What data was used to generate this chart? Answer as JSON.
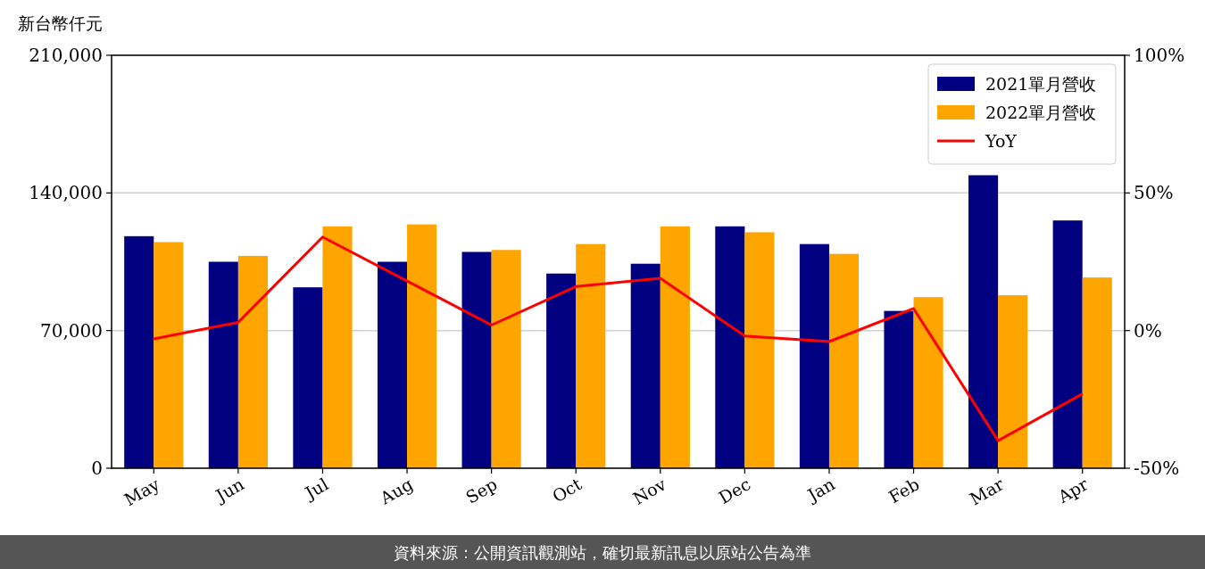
{
  "chart_data": {
    "type": "bar",
    "ylabel": "新台幣仟元",
    "categories": [
      "May",
      "Jun",
      "Jul",
      "Aug",
      "Sep",
      "Oct",
      "Nov",
      "Dec",
      "Jan",
      "Feb",
      "Mar",
      "Apr"
    ],
    "series": [
      {
        "name": "2021單月營收",
        "color": "#000080",
        "values": [
          118000,
          105000,
          92000,
          105000,
          110000,
          99000,
          104000,
          123000,
          114000,
          80000,
          149000,
          126000
        ]
      },
      {
        "name": "2022單月營收",
        "color": "#ffa500",
        "values": [
          115000,
          108000,
          123000,
          124000,
          111000,
          114000,
          123000,
          120000,
          109000,
          87000,
          88000,
          97000
        ]
      },
      {
        "name": "YoY",
        "type": "line",
        "axis": "y2",
        "color": "#ff0000",
        "values": [
          -3,
          3,
          34,
          18,
          2,
          16,
          19,
          -2,
          -4,
          8,
          -40,
          -23
        ]
      }
    ],
    "ylim": [
      0,
      210000
    ],
    "yticks": [
      {
        "value": 0,
        "label": "0"
      },
      {
        "value": 70000,
        "label": "70,000"
      },
      {
        "value": 140000,
        "label": "140,000"
      },
      {
        "value": 210000,
        "label": "210,000"
      }
    ],
    "y2lim": [
      -50,
      100
    ],
    "y2ticks": [
      {
        "value": -50,
        "label": "-50%"
      },
      {
        "value": 0,
        "label": "0%"
      },
      {
        "value": 50,
        "label": "50%"
      },
      {
        "value": 100,
        "label": "100%"
      }
    ],
    "grid": "y",
    "legend": "top right",
    "annotations": [
      "資料來源：公開資訊觀測站，確切最新訊息以原站公告為準"
    ]
  }
}
